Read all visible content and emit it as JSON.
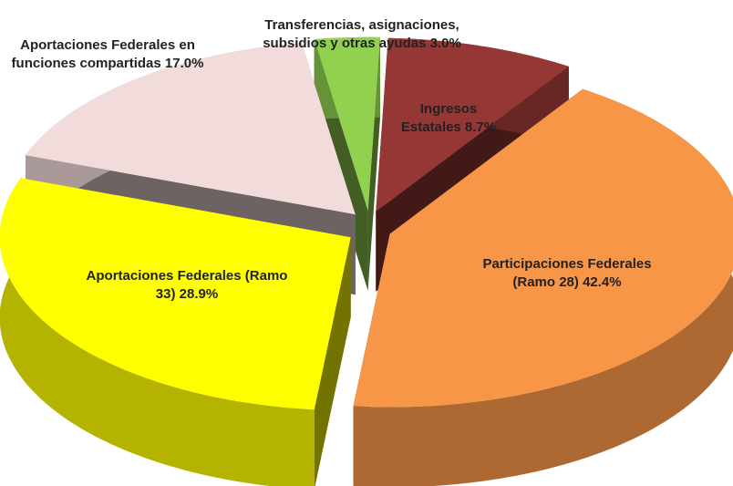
{
  "chart_data": {
    "type": "pie3d",
    "categories": [
      "Ingresos Estatales",
      "Participaciones Federales (Ramo 28)",
      "Aportaciones Federales (Ramo 33)",
      "Aportaciones Federales en funciones compartidas",
      "Transferencias, asignaciones, subsidios y otras ayudas"
    ],
    "values": [
      8.7,
      42.4,
      28.9,
      17.0,
      3.0
    ],
    "value_labels": [
      "8.7%",
      "42.4%",
      "28.9%",
      "17.0%",
      "3.0%"
    ],
    "colors": [
      "#953735",
      "#f79646",
      "#ffff00",
      "#f2dcdb",
      "#92d050"
    ]
  }
}
